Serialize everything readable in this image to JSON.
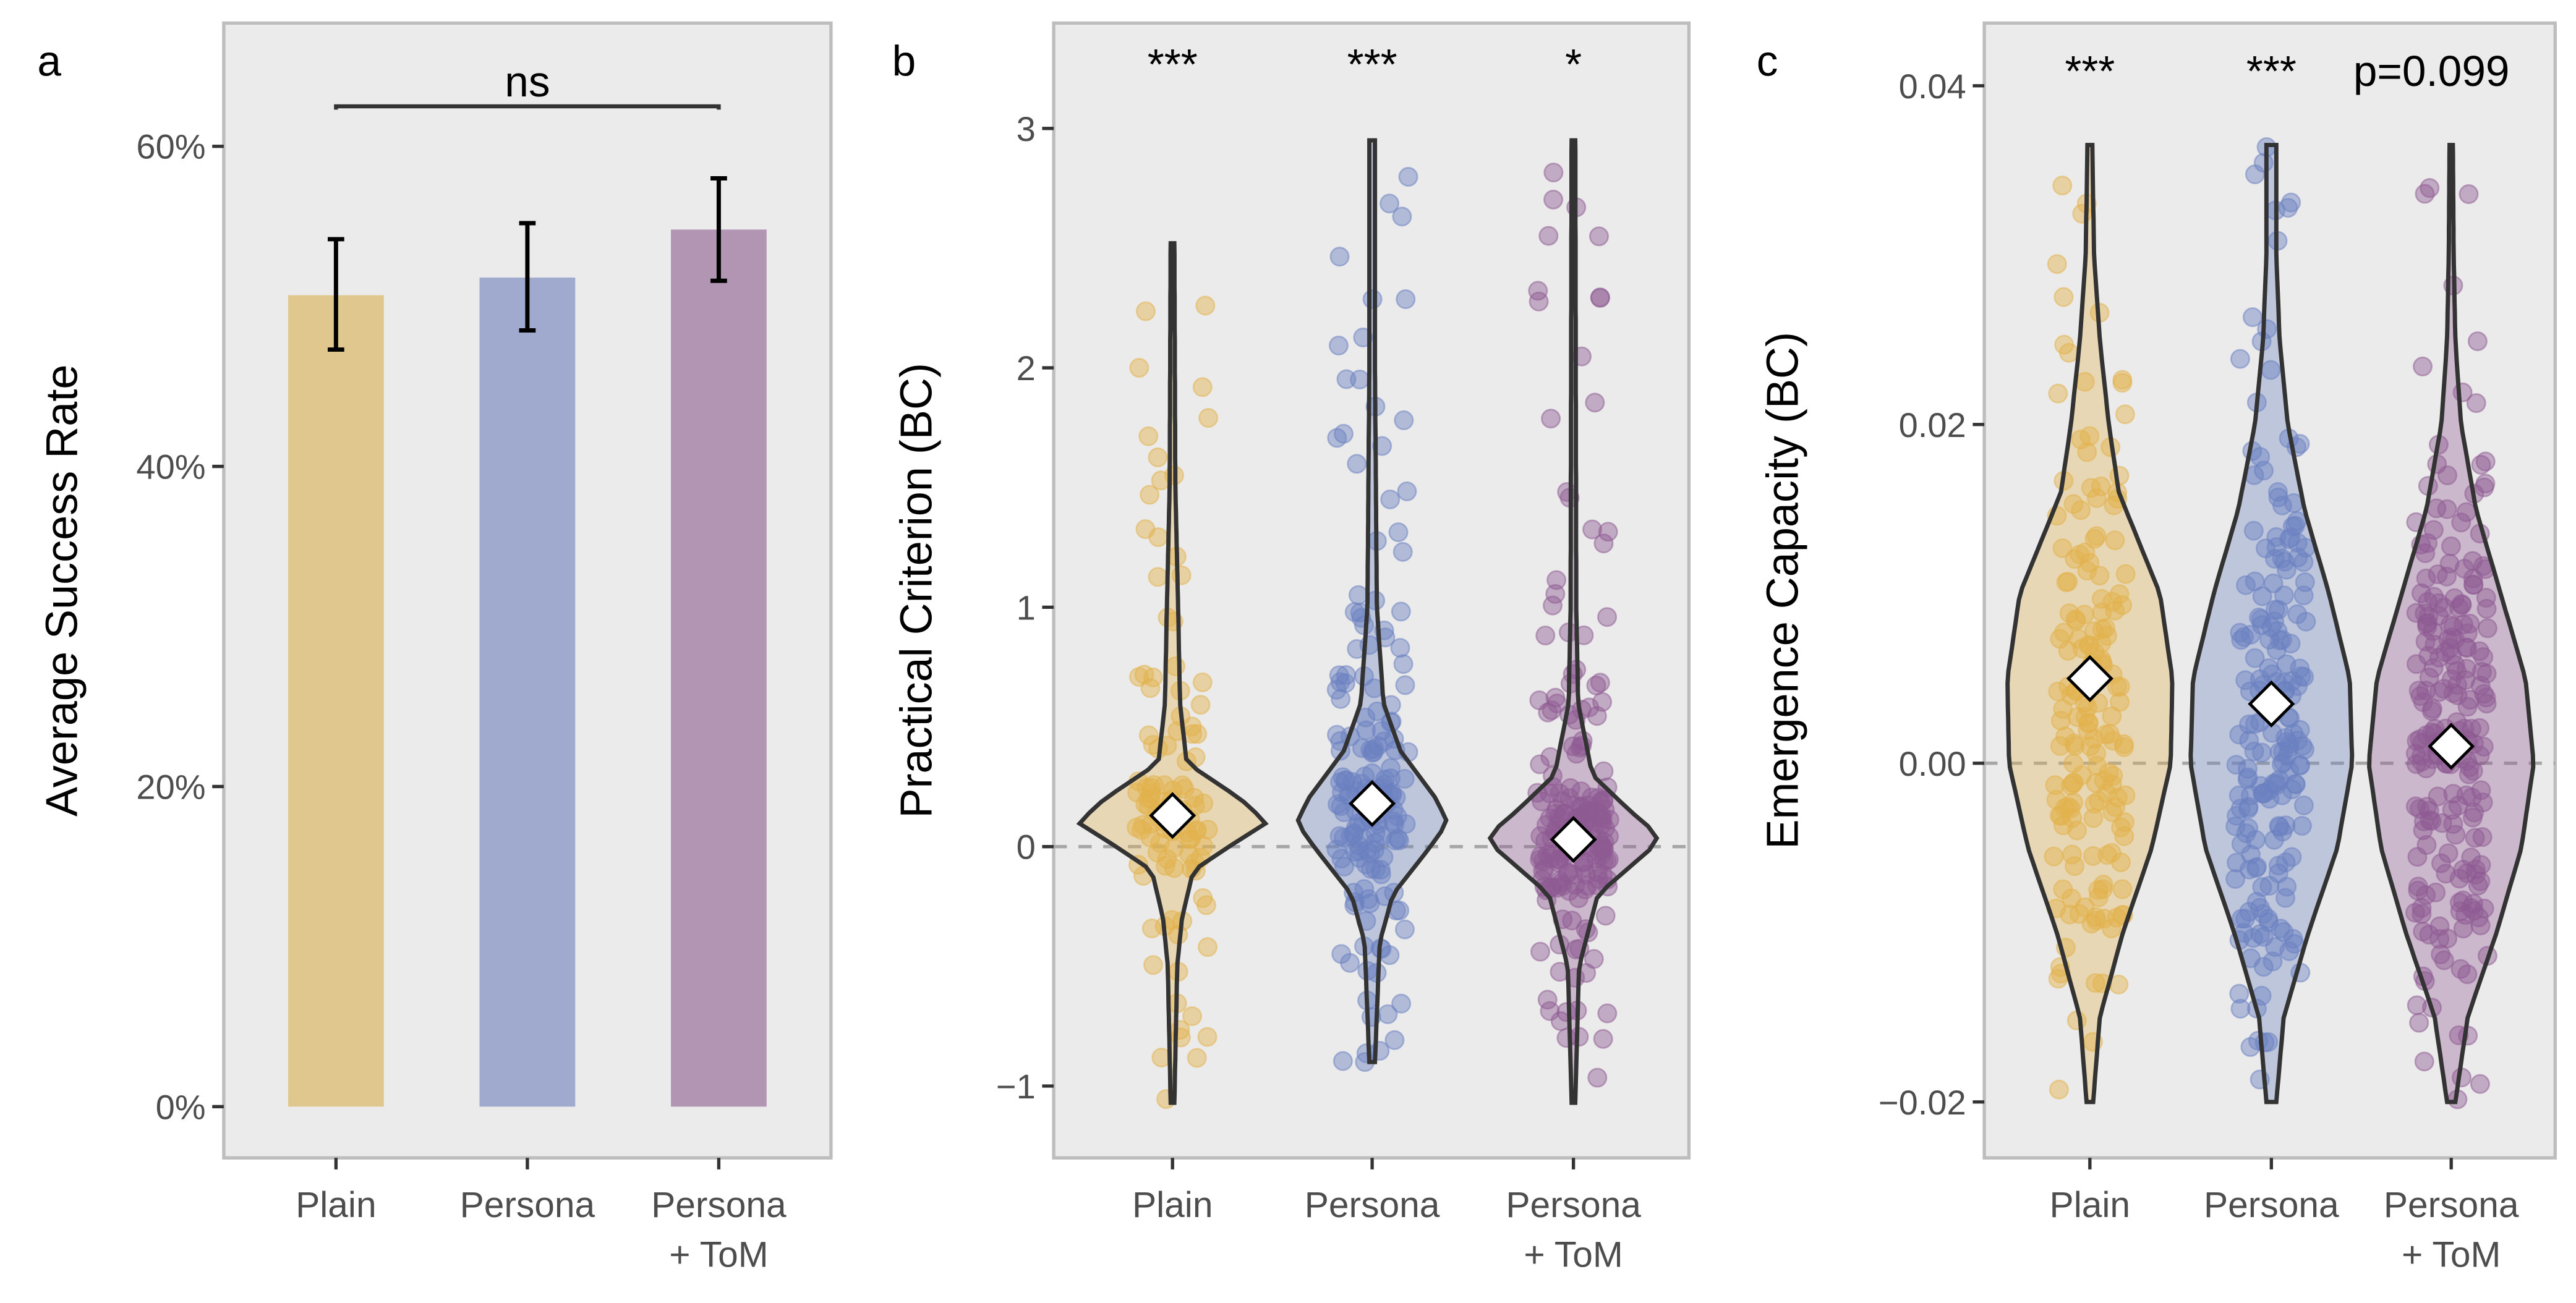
{
  "chart_data": [
    {
      "type": "bar",
      "panel_label": "a",
      "xlabel": "",
      "ylabel": "Average Success Rate",
      "categories": [
        "Plain",
        "Persona",
        "Persona + ToM"
      ],
      "values": [
        50.7,
        51.8,
        54.8
      ],
      "error_bars": [
        [
          47.3,
          54.2
        ],
        [
          48.5,
          55.2
        ],
        [
          51.6,
          58.0
        ]
      ],
      "yticks": [
        0,
        20,
        40,
        60
      ],
      "ytick_labels": [
        "0%",
        "20%",
        "40%",
        "60%"
      ],
      "ylim": [
        -3.2,
        67.7
      ],
      "grid": false,
      "annotation": {
        "text": "ns",
        "from": "Plain",
        "to": "Persona + ToM",
        "y": 62.5
      },
      "colors": [
        "#E0C78E",
        "#A0AACE",
        "#B295B3"
      ]
    },
    {
      "type": "violin",
      "panel_label": "b",
      "xlabel": "",
      "ylabel": "Practical Criterion (BC)",
      "categories": [
        "Plain",
        "Persona",
        "Persona + ToM"
      ],
      "means": [
        0.13,
        0.18,
        0.03
      ],
      "ranges": [
        [
          -1.07,
          2.52
        ],
        [
          -0.9,
          2.95
        ],
        [
          -1.07,
          2.95
        ]
      ],
      "density": [
        [
          [
            -1.07,
            0.02
          ],
          [
            -0.5,
            0.05
          ],
          [
            -0.3,
            0.1
          ],
          [
            -0.1,
            0.22
          ],
          [
            0,
            0.6
          ],
          [
            0.1,
            1.0
          ],
          [
            0.2,
            0.72
          ],
          [
            0.35,
            0.15
          ],
          [
            0.6,
            0.08
          ],
          [
            1.0,
            0.06
          ],
          [
            1.5,
            0.03
          ],
          [
            2.52,
            0.02
          ]
        ],
        [
          [
            -0.9,
            0.03
          ],
          [
            -0.4,
            0.08
          ],
          [
            -0.2,
            0.22
          ],
          [
            0,
            0.62
          ],
          [
            0.1,
            0.8
          ],
          [
            0.2,
            0.68
          ],
          [
            0.4,
            0.3
          ],
          [
            0.6,
            0.12
          ],
          [
            1.0,
            0.05
          ],
          [
            2.0,
            0.03
          ],
          [
            2.95,
            0.03
          ]
        ],
        [
          [
            -1.07,
            0.02
          ],
          [
            -0.5,
            0.06
          ],
          [
            -0.2,
            0.26
          ],
          [
            0,
            0.85
          ],
          [
            0.05,
            0.9
          ],
          [
            0.15,
            0.6
          ],
          [
            0.3,
            0.2
          ],
          [
            0.6,
            0.05
          ],
          [
            1.0,
            0.03
          ],
          [
            2.95,
            0.02
          ]
        ]
      ],
      "significance": [
        "***",
        "***",
        "*"
      ],
      "reference_line": 0,
      "yticks": [
        -1,
        0,
        1,
        2,
        3
      ],
      "ytick_labels": [
        "−1",
        "0",
        "1",
        "2",
        "3"
      ],
      "ylim": [
        -1.3,
        3.44
      ],
      "grid": false,
      "colors": [
        "#E2B24C",
        "#6A80C0",
        "#8E5A92"
      ]
    },
    {
      "type": "violin",
      "panel_label": "c",
      "xlabel": "",
      "ylabel": "Emergence Capacity (BC)",
      "categories": [
        "Plain",
        "Persona",
        "Persona + ToM"
      ],
      "means": [
        0.005,
        0.0035,
        0.001
      ],
      "ranges": [
        [
          -0.02,
          0.0365
        ],
        [
          -0.02,
          0.0365
        ],
        [
          -0.02,
          0.0365
        ]
      ],
      "density": [
        [
          [
            -0.02,
            0.04
          ],
          [
            -0.015,
            0.12
          ],
          [
            -0.01,
            0.4
          ],
          [
            -0.005,
            0.75
          ],
          [
            0,
            0.98
          ],
          [
            0.005,
            1.0
          ],
          [
            0.01,
            0.85
          ],
          [
            0.013,
            0.6
          ],
          [
            0.016,
            0.35
          ],
          [
            0.02,
            0.23
          ],
          [
            0.025,
            0.12
          ],
          [
            0.03,
            0.05
          ],
          [
            0.0365,
            0.03
          ]
        ],
        [
          [
            -0.02,
            0.06
          ],
          [
            -0.015,
            0.15
          ],
          [
            -0.01,
            0.45
          ],
          [
            -0.005,
            0.8
          ],
          [
            0,
            0.98
          ],
          [
            0.005,
            0.95
          ],
          [
            0.01,
            0.7
          ],
          [
            0.015,
            0.4
          ],
          [
            0.02,
            0.2
          ],
          [
            0.025,
            0.1
          ],
          [
            0.03,
            0.06
          ],
          [
            0.0365,
            0.06
          ]
        ],
        [
          [
            -0.02,
            0.05
          ],
          [
            -0.015,
            0.2
          ],
          [
            -0.01,
            0.55
          ],
          [
            -0.005,
            0.85
          ],
          [
            0,
            1.0
          ],
          [
            0.005,
            0.9
          ],
          [
            0.01,
            0.6
          ],
          [
            0.015,
            0.3
          ],
          [
            0.02,
            0.12
          ],
          [
            0.025,
            0.05
          ],
          [
            0.03,
            0.03
          ],
          [
            0.0365,
            0.02
          ]
        ]
      ],
      "significance": [
        "***",
        "***",
        "p=0.099"
      ],
      "reference_line": 0,
      "yticks": [
        -0.02,
        0,
        0.02,
        0.04
      ],
      "ytick_labels": [
        "−0.02",
        "0.00",
        "0.02",
        "0.04"
      ],
      "ylim": [
        -0.0233,
        0.0437
      ],
      "grid": false,
      "colors": [
        "#E2B24C",
        "#6A80C0",
        "#8E5A92"
      ]
    }
  ]
}
